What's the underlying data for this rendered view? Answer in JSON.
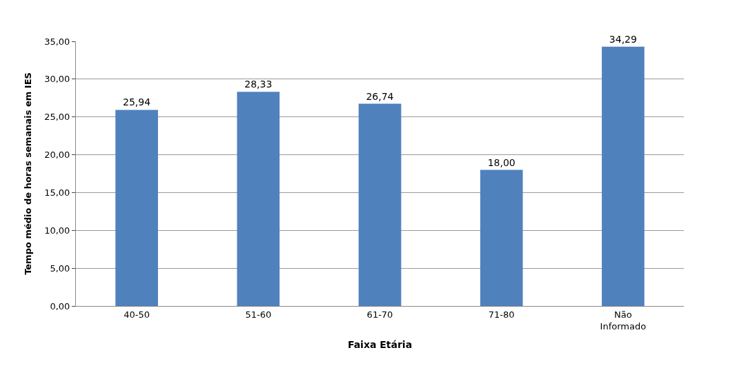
{
  "chart_data": {
    "type": "bar",
    "categories": [
      "40-50",
      "51-60",
      "61-70",
      "71-80",
      "Não\nInformado"
    ],
    "values": [
      25.94,
      28.33,
      26.74,
      18.0,
      34.29
    ],
    "value_labels": [
      "25,94",
      "28,33",
      "26,74",
      "18,00",
      "34,29"
    ],
    "color": "#4f81bd",
    "xlabel": "Faixa Etária",
    "ylabel": "Tempo médio de horas semanais em IES",
    "ylim": [
      0,
      35
    ],
    "yticks": [
      {
        "value": 0,
        "label": "0,00"
      },
      {
        "value": 5,
        "label": "5,00"
      },
      {
        "value": 10,
        "label": "10,00"
      },
      {
        "value": 15,
        "label": "15,00"
      },
      {
        "value": 20,
        "label": "20,00"
      },
      {
        "value": 25,
        "label": "25,00"
      },
      {
        "value": 30,
        "label": "30,00"
      },
      {
        "value": 35,
        "label": "35,00"
      }
    ],
    "grid": "y"
  }
}
